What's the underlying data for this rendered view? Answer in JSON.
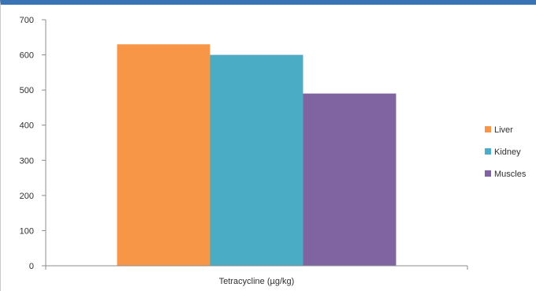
{
  "chart_data": {
    "type": "bar",
    "categories": [
      "Tetracycline (µg/kg)"
    ],
    "series": [
      {
        "name": "Liver",
        "values": [
          630
        ],
        "color": "#f79646"
      },
      {
        "name": "Kidney",
        "values": [
          600
        ],
        "color": "#4bacc6"
      },
      {
        "name": "Muscles",
        "values": [
          490
        ],
        "color": "#8064a2"
      }
    ],
    "xlabel": "Tetracycline (µg/kg)",
    "ylabel": "",
    "ylim": [
      0,
      700
    ],
    "yticks": [
      "0",
      "100",
      "200",
      "300",
      "400",
      "500",
      "600",
      "700"
    ],
    "grid": false,
    "legend_position": "right"
  }
}
